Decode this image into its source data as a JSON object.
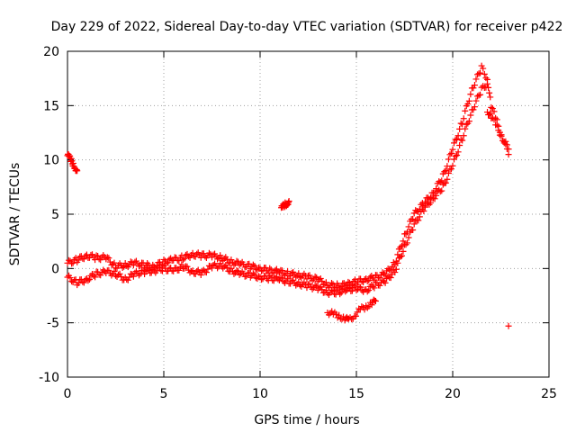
{
  "chart_data": {
    "type": "scatter",
    "title": "Day 229 of 2022, Sidereal Day-to-day VTEC variation (SDTVAR) for receiver p422",
    "xlabel": "GPS time / hours",
    "ylabel": "SDTVAR / TECUs",
    "xlim": [
      0,
      25
    ],
    "ylim": [
      -10,
      20
    ],
    "x_ticks": [
      0,
      5,
      10,
      15,
      20,
      25
    ],
    "y_ticks": [
      -10,
      -5,
      0,
      5,
      10,
      15,
      20
    ],
    "x_tick_labels": [
      "0",
      "5",
      "10",
      "15",
      "20",
      "25"
    ],
    "y_tick_labels": [
      "-10",
      "-5",
      "0",
      "5",
      "10",
      "15",
      "20"
    ],
    "grid": true,
    "marker": "+",
    "color": "#ff0000",
    "series": [
      {
        "name": "main-band-upper",
        "x": [
          0.0,
          0.5,
          1.0,
          1.5,
          2.0,
          2.5,
          3.0,
          3.5,
          4.0,
          4.5,
          5.0,
          5.5,
          6.0,
          6.5,
          7.0,
          7.5,
          8.0,
          8.5,
          9.0,
          9.5,
          10.0,
          10.5,
          11.0,
          11.5,
          12.0,
          12.5,
          13.0,
          13.5,
          14.0,
          14.5,
          15.0,
          15.5,
          16.0,
          16.5,
          17.0,
          17.5,
          18.0,
          18.5,
          19.0,
          19.5,
          20.0,
          20.5,
          21.0,
          21.5,
          21.8,
          22.0,
          22.3,
          22.6,
          22.9
        ],
        "y": [
          0.5,
          0.8,
          1.2,
          1.0,
          1.0,
          0.2,
          0.3,
          0.5,
          0.3,
          0.2,
          0.6,
          0.8,
          1.0,
          1.3,
          1.2,
          1.2,
          1.0,
          0.6,
          0.4,
          0.2,
          0.0,
          -0.2,
          -0.3,
          -0.5,
          -0.6,
          -0.8,
          -1.0,
          -1.5,
          -1.6,
          -1.5,
          -1.2,
          -1.0,
          -0.8,
          -0.5,
          0.5,
          3.0,
          5.0,
          6.0,
          7.0,
          8.5,
          11.0,
          13.5,
          16.5,
          18.5,
          17.5,
          15.0,
          13.5,
          12.0,
          10.5
        ]
      },
      {
        "name": "main-band-lower",
        "x": [
          0.0,
          0.5,
          1.0,
          1.5,
          2.0,
          2.5,
          3.0,
          3.5,
          4.0,
          4.5,
          5.0,
          5.5,
          6.0,
          6.5,
          7.0,
          7.5,
          8.0,
          8.5,
          9.0,
          9.5,
          10.0,
          10.5,
          11.0,
          11.5,
          12.0,
          12.5,
          13.0,
          13.5,
          14.0,
          14.5,
          15.0,
          15.5,
          16.0,
          16.5,
          17.0,
          17.5,
          18.0,
          18.5,
          19.0,
          19.5,
          20.0,
          20.5,
          21.0,
          21.5,
          21.8
        ],
        "y": [
          -0.8,
          -1.3,
          -1.0,
          -0.5,
          -0.3,
          -0.5,
          -1.0,
          -0.5,
          -0.3,
          -0.2,
          0.0,
          -0.2,
          0.2,
          -0.3,
          -0.4,
          0.2,
          0.3,
          -0.2,
          -0.5,
          -0.6,
          -0.8,
          -0.9,
          -1.0,
          -1.2,
          -1.4,
          -1.6,
          -1.8,
          -2.2,
          -2.2,
          -2.0,
          -1.8,
          -2.0,
          -1.5,
          -1.2,
          -0.2,
          2.0,
          4.0,
          5.5,
          6.5,
          7.5,
          9.5,
          12.0,
          14.5,
          16.5,
          17.0
        ]
      },
      {
        "name": "segment-early-high",
        "x": [
          0.0,
          0.1,
          0.2,
          0.3,
          0.4,
          0.5
        ],
        "y": [
          10.4,
          10.2,
          9.9,
          9.6,
          9.3,
          9.0
        ]
      },
      {
        "name": "segment-mid-high",
        "x": [
          11.1,
          11.2,
          11.3,
          11.4,
          11.5
        ],
        "y": [
          5.5,
          5.7,
          5.9,
          6.0,
          6.2
        ]
      },
      {
        "name": "segment-low-dip",
        "x": [
          13.5,
          13.8,
          14.1,
          14.4,
          14.6,
          14.9,
          15.2,
          15.5,
          15.8,
          16.0
        ],
        "y": [
          -4.0,
          -4.2,
          -4.4,
          -4.6,
          -4.8,
          -4.3,
          -3.8,
          -3.5,
          -3.2,
          -3.0
        ]
      },
      {
        "name": "segment-post-peak",
        "x": [
          21.8,
          22.0,
          22.3,
          22.6,
          22.9
        ],
        "y": [
          14.5,
          14.0,
          13.0,
          12.0,
          11.0
        ]
      },
      {
        "name": "outlier",
        "x": [
          22.9
        ],
        "y": [
          -5.3
        ]
      }
    ]
  }
}
